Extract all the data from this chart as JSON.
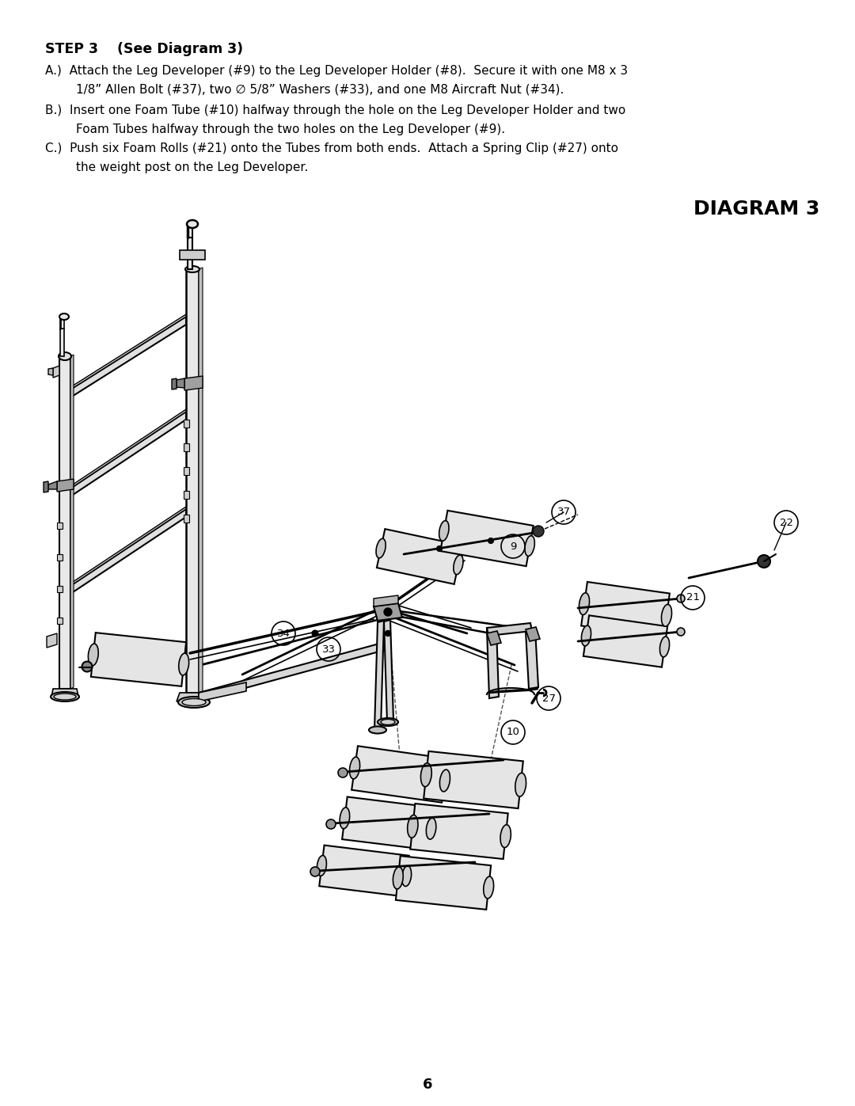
{
  "background_color": "#ffffff",
  "page_number": "6",
  "step_title": "STEP 3    (See Diagram 3)",
  "diagram_title": "DIAGRAM 3",
  "fig_width": 10.8,
  "fig_height": 13.97,
  "text_A": "A.)  Attach the Leg Developer (#9) to the Leg Developer Holder (#8).  Secure it with one M8 x 3\n        1/8” Allen Bolt (#37), two ∅ 5/8” Washers (#33), and one M8 Aircraft Nut (#34).",
  "text_B": "B.)  Insert one Foam Tube (#10) halfway through the hole on the Leg Developer Holder and two\n        Foam Tubes halfway through the two holes on the Leg Developer (#9).",
  "text_C": "C.)  Push six Foam Rolls (#21) onto the Tubes from both ends.  Attach a Spring Clip (#27) onto\n        the weight post on the Leg Developer."
}
